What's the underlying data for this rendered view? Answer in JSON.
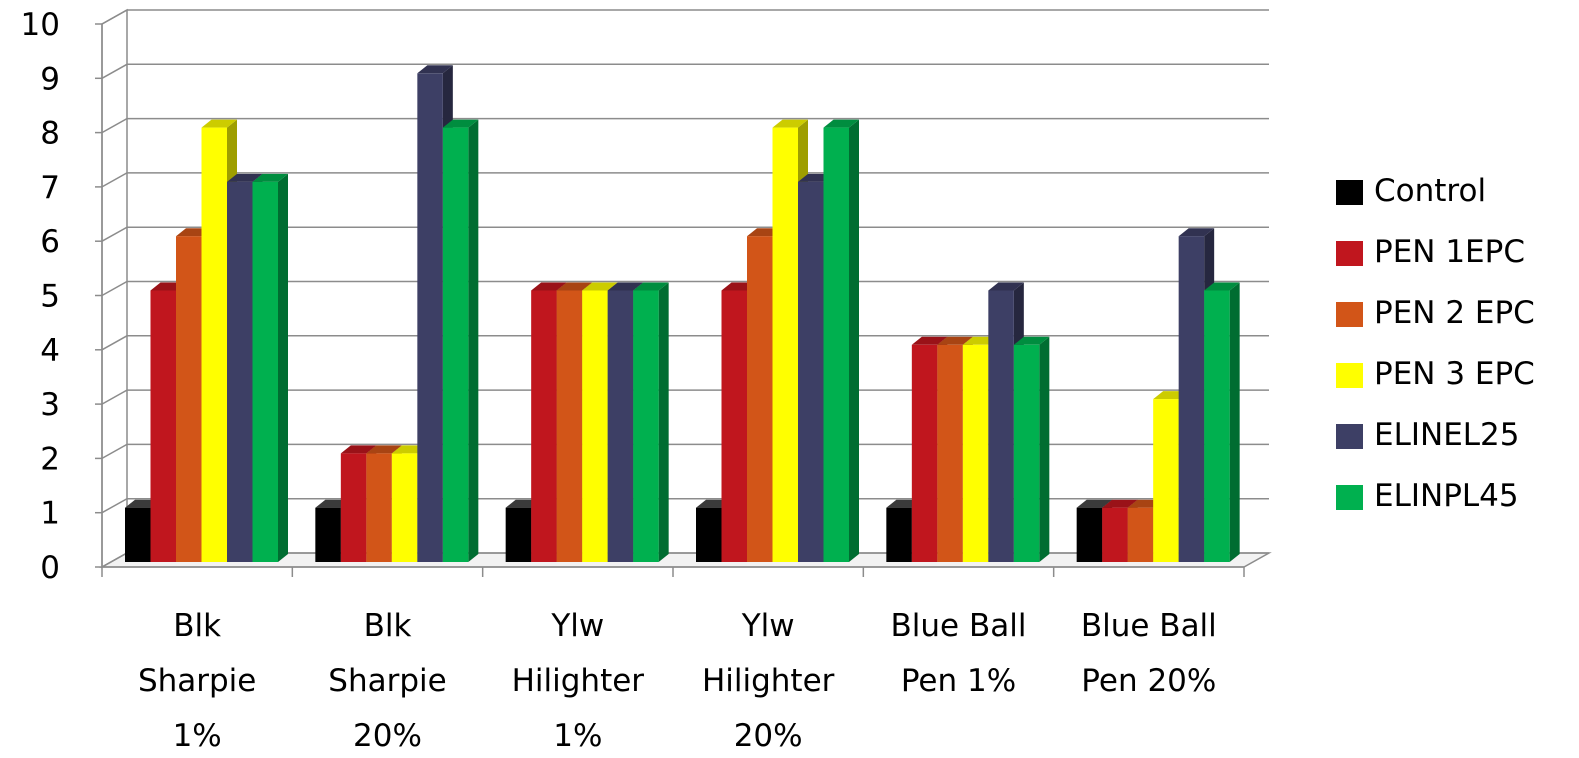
{
  "chart_data": {
    "type": "bar",
    "title": "",
    "xlabel": "",
    "ylabel": "",
    "ylim": [
      0,
      10
    ],
    "yticks": [
      "0",
      "1",
      "2",
      "3",
      "4",
      "5",
      "6",
      "7",
      "8",
      "9",
      "10"
    ],
    "grid": true,
    "style": "3d-clustered-column",
    "legend_position": "right",
    "categories": [
      [
        "Blk",
        "Sharpie",
        "1%"
      ],
      [
        "Blk",
        "Sharpie",
        "20%"
      ],
      [
        "Ylw",
        "Hilighter",
        "1%"
      ],
      [
        "Ylw",
        "Hilighter",
        "20%"
      ],
      [
        "Blue Ball",
        "Pen 1%"
      ],
      [
        "Blue Ball",
        "Pen 20%"
      ]
    ],
    "series": [
      {
        "name": "Control",
        "color": "#000000",
        "values": [
          1,
          1,
          1,
          1,
          1,
          1
        ]
      },
      {
        "name": "PEN 1EPC",
        "color": "#C0161E",
        "values": [
          5,
          2,
          5,
          5,
          4,
          1
        ]
      },
      {
        "name": "PEN 2 EPC",
        "color": "#D25518",
        "values": [
          6,
          2,
          5,
          6,
          4,
          1
        ]
      },
      {
        "name": "PEN 3 EPC",
        "color": "#FFFF00",
        "values": [
          8,
          2,
          5,
          8,
          4,
          3
        ]
      },
      {
        "name": "ELINEL25",
        "color": "#3D3F65",
        "values": [
          7,
          9,
          5,
          7,
          5,
          6
        ]
      },
      {
        "name": "ELINPL45",
        "color": "#00B04F",
        "values": [
          7,
          8,
          5,
          8,
          4,
          5
        ]
      }
    ]
  }
}
